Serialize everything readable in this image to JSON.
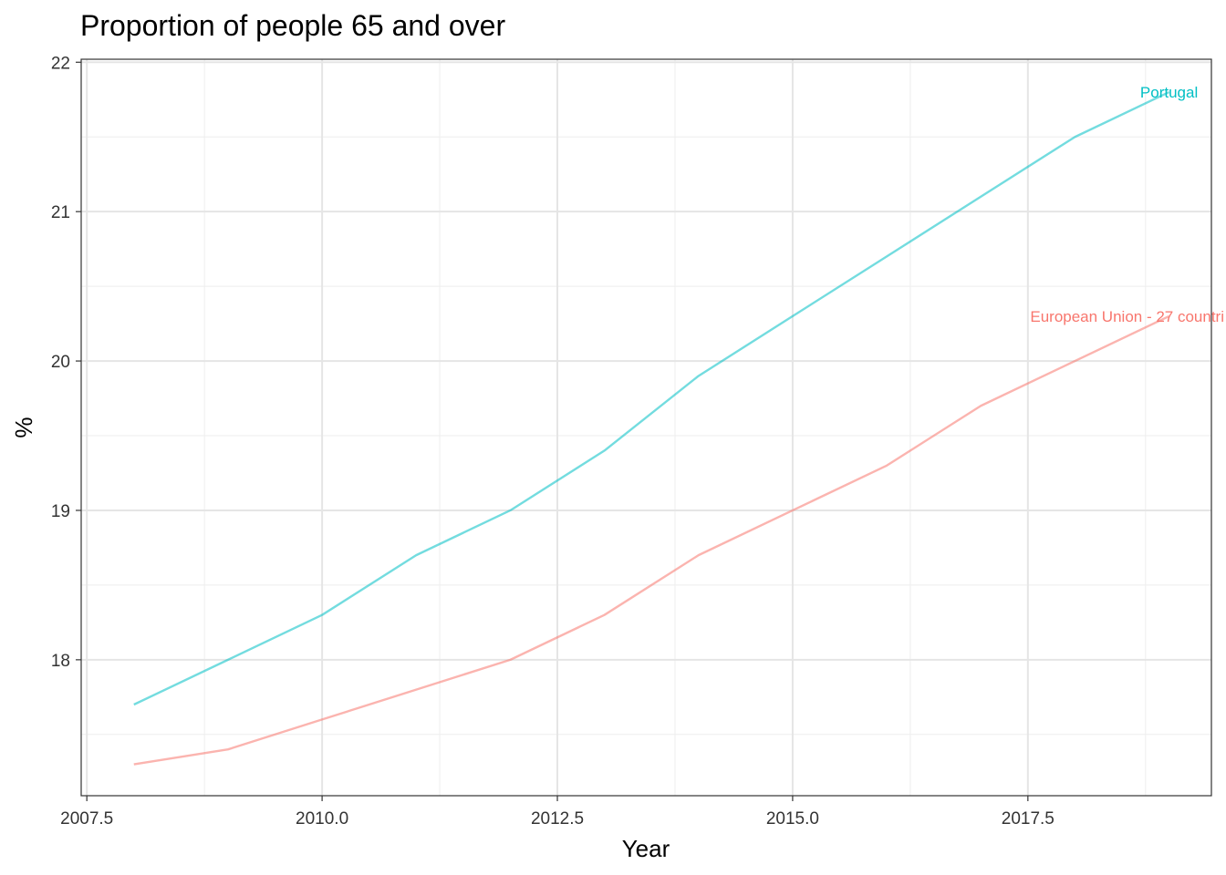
{
  "chart_data": {
    "type": "line",
    "title": "Proportion of people 65 and over",
    "xlabel": "Year",
    "ylabel": "%",
    "xlim": [
      2007.44,
      2019.45
    ],
    "ylim": [
      17.09,
      22.02
    ],
    "x_ticks": [
      2007.5,
      2010.0,
      2012.5,
      2015.0,
      2017.5
    ],
    "x_tick_labels": [
      "2007.5",
      "2010.0",
      "2012.5",
      "2015.0",
      "2017.5"
    ],
    "y_ticks": [
      18,
      19,
      20,
      21,
      22
    ],
    "y_tick_labels": [
      "18",
      "19",
      "20",
      "21",
      "22"
    ],
    "grid": true,
    "legend": "none",
    "x": [
      2008,
      2009,
      2010,
      2011,
      2012,
      2013,
      2014,
      2015,
      2016,
      2017,
      2018,
      2019
    ],
    "series": [
      {
        "name": "European Union - 27 countri",
        "color": "#F8766D",
        "values": [
          17.3,
          17.4,
          17.6,
          17.8,
          18.0,
          18.3,
          18.7,
          19.0,
          19.3,
          19.7,
          20.0,
          20.3
        ]
      },
      {
        "name": "Portugal",
        "color": "#00BFC4",
        "values": [
          17.7,
          18.0,
          18.3,
          18.7,
          19.0,
          19.4,
          19.9,
          20.3,
          20.7,
          21.1,
          21.5,
          21.8
        ]
      }
    ]
  }
}
